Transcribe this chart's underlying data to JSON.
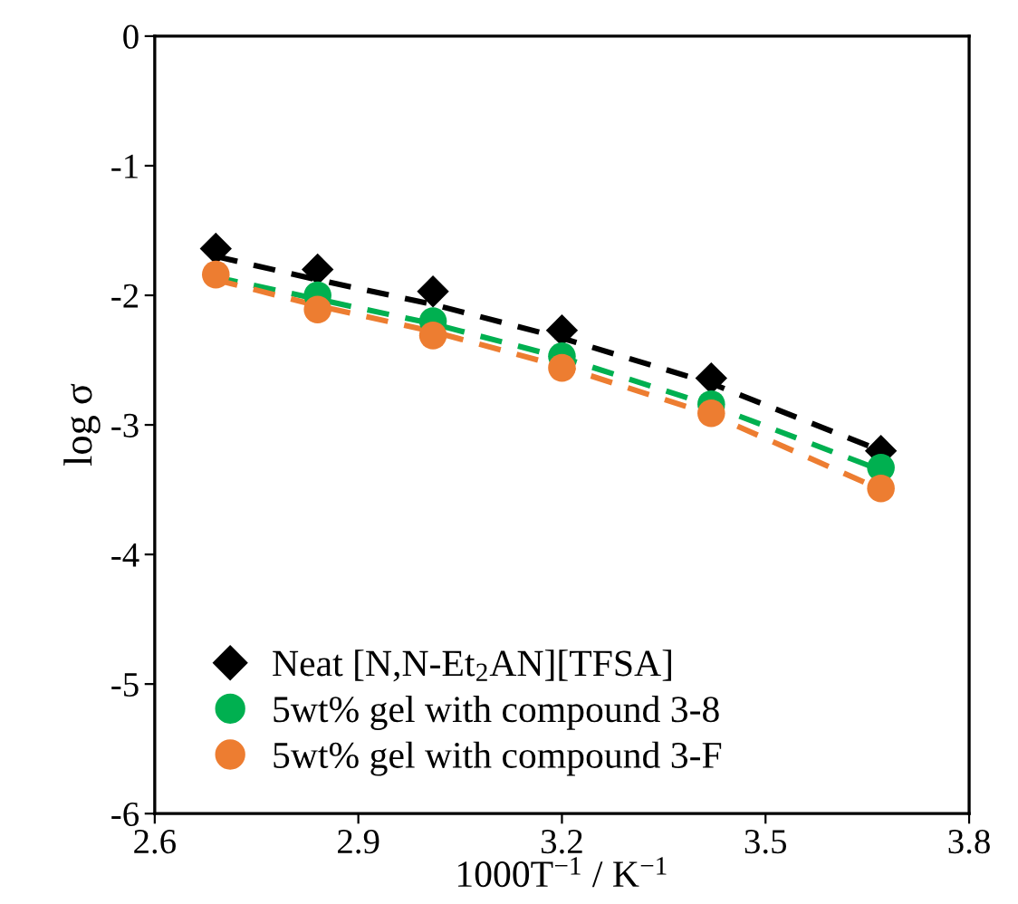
{
  "chart_data": {
    "type": "scatter",
    "xlabel": "1000T$^{−1}$ / K$^{−1}$",
    "ylabel": "log σ",
    "x": [
      2.69,
      2.84,
      3.01,
      3.2,
      3.42,
      3.67
    ],
    "series": [
      {
        "name": "Neat [N,N-Et$_{2}$AN][TFSA]",
        "color": "#000000",
        "marker": "diamond",
        "values": [
          -1.64,
          -1.8,
          -1.97,
          -2.27,
          -2.64,
          -3.2
        ]
      },
      {
        "name": "5wt% gel with compound 3-8",
        "color": "#00b050",
        "marker": "circle",
        "values": [
          null,
          -2.0,
          -2.2,
          -2.47,
          -2.84,
          -3.33
        ]
      },
      {
        "name": "5wt% gel with compound 3-F",
        "color": "#ed7d31",
        "marker": "circle",
        "values": [
          -1.84,
          -2.11,
          -2.31,
          -2.56,
          -2.91,
          -3.49
        ]
      },
      {
        "type": "line",
        "color": "#000000",
        "marker": "none",
        "values": [
          -1.7,
          -1.88,
          -2.07,
          -2.33,
          -2.68,
          -3.2
        ]
      },
      {
        "type": "line",
        "color": "#00b050",
        "marker": "none",
        "values": [
          -1.86,
          -2.03,
          -2.22,
          -2.48,
          -2.85,
          -3.35
        ]
      },
      {
        "type": "line",
        "color": "#ed7d31",
        "marker": "none",
        "values": [
          -1.88,
          -2.08,
          -2.28,
          -2.55,
          -2.92,
          -3.5
        ]
      }
    ],
    "line_style": "dashed",
    "xlim": [
      2.6,
      3.8
    ],
    "xticks": [
      2.6,
      2.9,
      3.2,
      3.5,
      3.8
    ],
    "ylim": [
      -6,
      0
    ],
    "yticks": [
      -6,
      -5,
      -4,
      -3,
      -2,
      -1,
      0
    ],
    "grid": false,
    "legend": "bottom left"
  }
}
